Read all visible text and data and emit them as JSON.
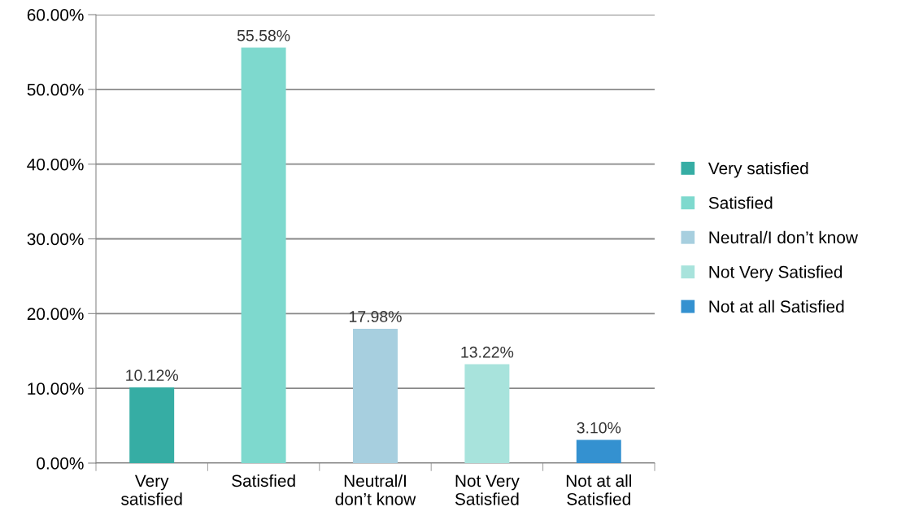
{
  "chart_data": {
    "type": "bar",
    "categories": [
      "Very\nsatisfied",
      "Satisfied",
      "Neutral/I\ndon’t know",
      "Not Very\nSatisfied",
      "Not at all\nSatisfied"
    ],
    "series": [
      {
        "name": "Very satisfied",
        "color": "#36ada4",
        "values": [
          10.12,
          null,
          null,
          null,
          null
        ],
        "value_labels": [
          "10.12%",
          null,
          null,
          null,
          null
        ]
      },
      {
        "name": "Satisfied",
        "color": "#7ed9ce",
        "values": [
          null,
          55.58,
          null,
          null,
          null
        ],
        "value_labels": [
          null,
          "55.58%",
          null,
          null,
          null
        ]
      },
      {
        "name": "Neutral/I don’t know",
        "color": "#a7cfdf",
        "values": [
          null,
          null,
          17.98,
          null,
          null
        ],
        "value_labels": [
          null,
          null,
          "17.98%",
          null,
          null
        ]
      },
      {
        "name": "Not Very Satisfied",
        "color": "#a8e3dc",
        "values": [
          null,
          null,
          null,
          13.22,
          null
        ],
        "value_labels": [
          null,
          null,
          null,
          "13.22%",
          null
        ]
      },
      {
        "name": "Not at all Satisfied",
        "color": "#3491d0",
        "values": [
          null,
          null,
          null,
          null,
          3.1
        ],
        "value_labels": [
          null,
          null,
          null,
          null,
          "3.10%"
        ]
      }
    ],
    "ylim": [
      0,
      60
    ],
    "yticks": [
      {
        "value": 0,
        "label": "0.00%"
      },
      {
        "value": 10,
        "label": "10.00%"
      },
      {
        "value": 20,
        "label": "20.00%"
      },
      {
        "value": 30,
        "label": "30.00%"
      },
      {
        "value": 40,
        "label": "40.00%"
      },
      {
        "value": 50,
        "label": "50.00%"
      },
      {
        "value": 60,
        "label": "60.00%"
      }
    ],
    "grid": "y",
    "legend": "right"
  }
}
